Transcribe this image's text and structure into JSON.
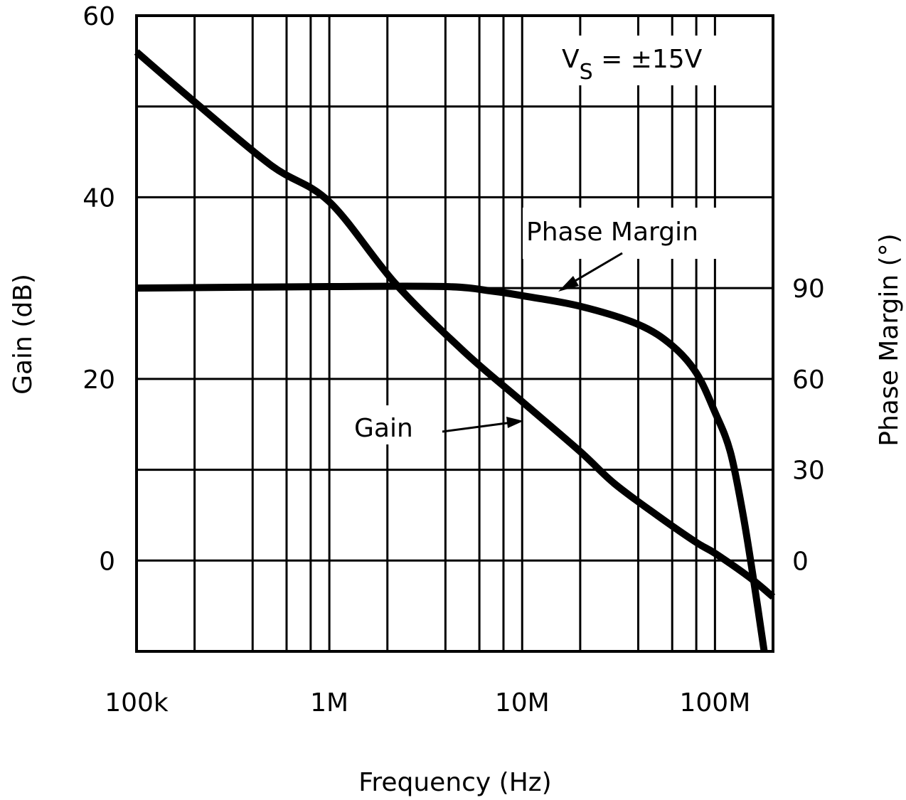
{
  "chart_data": {
    "type": "line",
    "title": "",
    "xlabel": "Frequency (Hz)",
    "ylabel": "Gain (dB)",
    "y2label": "Phase Margin (°)",
    "xscale": "log",
    "xlim": [
      100000,
      200000000
    ],
    "ylim": [
      -10,
      60
    ],
    "y2lim": [
      -30,
      180
    ],
    "grid": true,
    "x_ticks": [
      {
        "value": 100000,
        "label": "100k"
      },
      {
        "value": 1000000,
        "label": "1M"
      },
      {
        "value": 10000000,
        "label": "10M"
      },
      {
        "value": 100000000,
        "label": "100M"
      }
    ],
    "y_ticks": [
      {
        "value": 0,
        "label": "0"
      },
      {
        "value": 20,
        "label": "20"
      },
      {
        "value": 40,
        "label": "40"
      },
      {
        "value": 60,
        "label": "60"
      }
    ],
    "y2_ticks": [
      {
        "value": 0,
        "label": "0"
      },
      {
        "value": 30,
        "label": "30"
      },
      {
        "value": 60,
        "label": "60"
      },
      {
        "value": 90,
        "label": "90"
      }
    ],
    "annotation": {
      "v": "V",
      "sub": "S",
      "rest": " = ±15V"
    },
    "series": [
      {
        "name": "Gain",
        "axis": "left",
        "x": [
          100000,
          200000,
          500000,
          1000000,
          2200000,
          5000000,
          10000000,
          20000000,
          30000000,
          50000000,
          80000000,
          100000000,
          150000000,
          200000000
        ],
        "y": [
          56,
          50.5,
          43.5,
          39.5,
          30.5,
          23,
          17.5,
          12,
          8.5,
          5,
          2,
          0.8,
          -1.8,
          -4
        ]
      },
      {
        "name": "Phase Margin",
        "axis": "right",
        "x": [
          100000,
          1000000,
          4000000,
          7000000,
          10000000,
          20000000,
          40000000,
          60000000,
          80000000,
          100000000,
          120000000,
          140000000,
          160000000,
          180000000
        ],
        "y": [
          90,
          90.5,
          90.5,
          89,
          87.5,
          84,
          78,
          71,
          62,
          49,
          36,
          15,
          -8,
          -30
        ]
      }
    ]
  }
}
